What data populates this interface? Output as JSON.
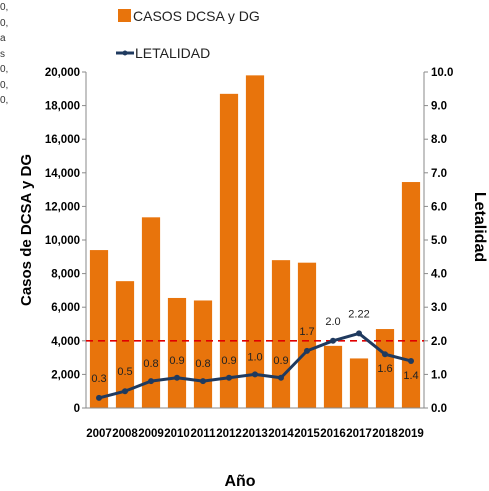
{
  "margin_text": [
    "0,",
    "0,",
    "a",
    "s",
    "0,",
    "0,",
    "0,"
  ],
  "chart_data": {
    "type": "bar+line",
    "categories": [
      "2007",
      "2008",
      "2009",
      "2010",
      "2011",
      "2012",
      "2013",
      "2014",
      "2015",
      "2016",
      "2017",
      "2018",
      "2019"
    ],
    "series": [
      {
        "name": "CASOS DCSA y DG",
        "type": "bar",
        "axis": "left",
        "color": "#E8740C",
        "values": [
          9400,
          7550,
          11350,
          6550,
          6400,
          18700,
          19800,
          8800,
          8650,
          3700,
          2950,
          4700,
          13450
        ]
      },
      {
        "name": "LETALIDAD",
        "type": "line",
        "axis": "right",
        "color": "#1F3A5F",
        "values": [
          0.3,
          0.5,
          0.8,
          0.9,
          0.8,
          0.9,
          1.0,
          0.9,
          1.7,
          2.0,
          2.22,
          1.6,
          1.4
        ],
        "labels": [
          "0.3",
          "0.5",
          "0.8",
          "0.9",
          "0.8",
          "0.9",
          "1.0",
          "0.9",
          "1.7",
          "2.0",
          "2.22",
          "1.6",
          "1.4"
        ]
      }
    ],
    "reference_line": {
      "axis": "right",
      "value": 2.0,
      "color": "#E00000",
      "style": "dashed"
    },
    "xlabel": "Año",
    "ylabel_left": "Casos de DCSA y DG",
    "ylabel_right": "Letalidad",
    "ylim_left": [
      0,
      20000
    ],
    "yticks_left": [
      "0",
      "2,000",
      "4,000",
      "6,000",
      "8,000",
      "10,000",
      "12,000",
      "14,000",
      "16,000",
      "18,000",
      "20,000"
    ],
    "ylim_right": [
      0,
      10
    ],
    "yticks_right": [
      "0.0",
      "1.0",
      "2.0",
      "3.0",
      "4.0",
      "5.0",
      "6.0",
      "7.0",
      "8.0",
      "9.0",
      "10.0"
    ],
    "legend_position": "top",
    "grid": false
  }
}
